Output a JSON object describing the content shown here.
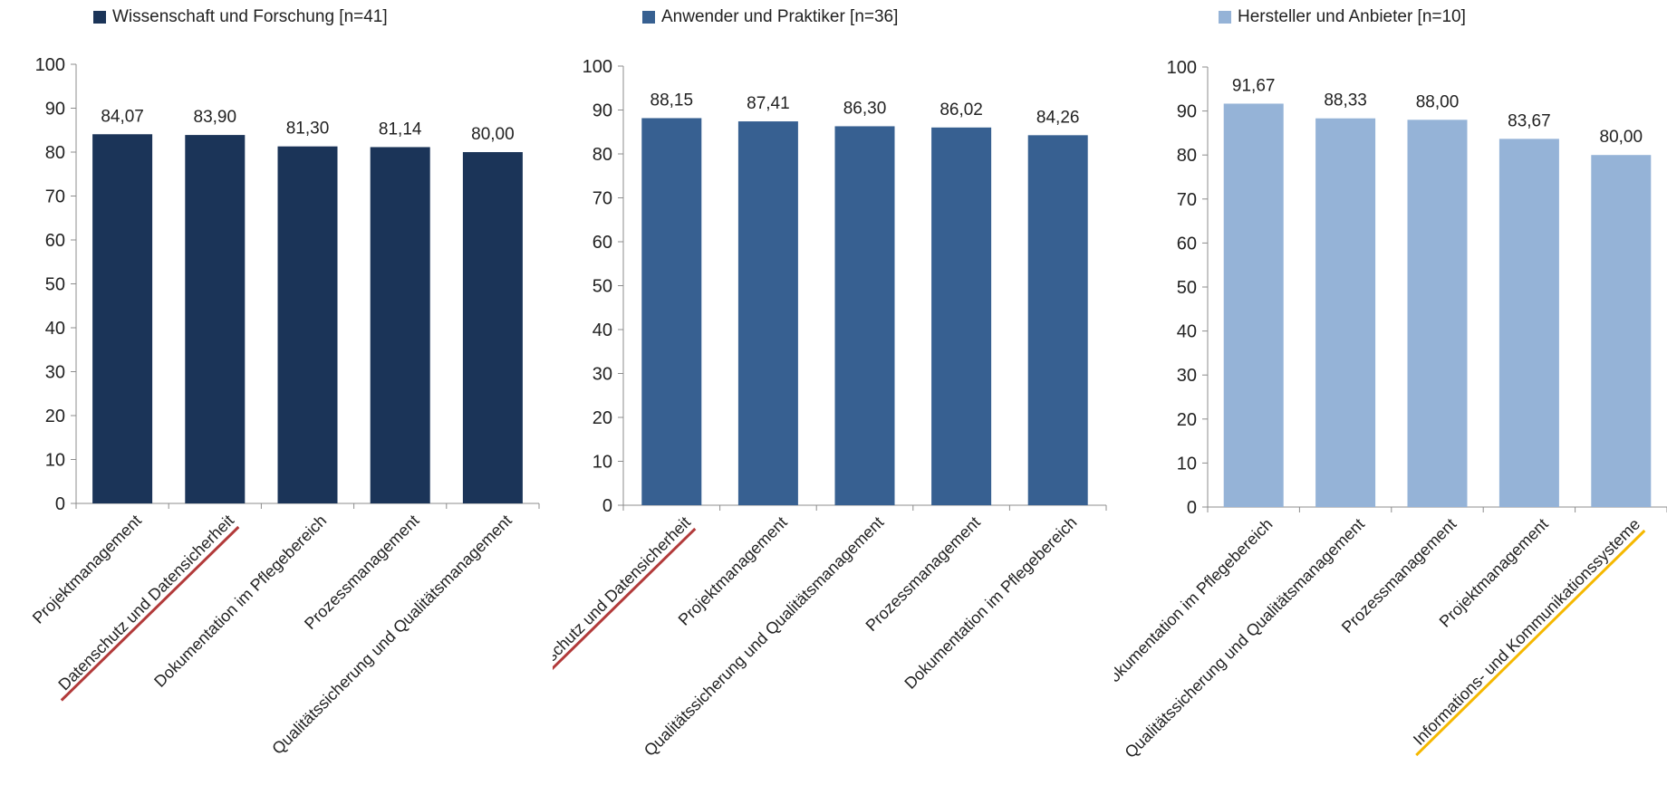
{
  "chart_data": [
    {
      "type": "bar",
      "legend": "Wissenschaft und Forschung [n=41]",
      "color": "#1b3458",
      "categories": [
        "Projektmanagement",
        "Datenschutz und Datensicherheit",
        "Dokumentation im Pflegebereich",
        "Prozessmanagement",
        "Qualitätssicherung und Qualitätsmanagement"
      ],
      "values": [
        84.07,
        83.9,
        81.3,
        81.14,
        80.0
      ],
      "value_labels": [
        "84,07",
        "83,90",
        "81,30",
        "81,14",
        "80,00"
      ],
      "underline": [
        {
          "index": 1,
          "color": "#b23a3a"
        }
      ],
      "ylim": [
        0,
        100
      ],
      "yticks": [
        "0",
        "10",
        "20",
        "30",
        "40",
        "50",
        "60",
        "70",
        "80",
        "90",
        "100"
      ]
    },
    {
      "type": "bar",
      "legend": "Anwender und Praktiker [n=36]",
      "color": "#376091",
      "categories": [
        "Datenschutz und Datensicherheit",
        "Projektmanagement",
        "Qualitätssicherung und Qualitätsmanagement",
        "Prozessmanagement",
        "Dokumentation im Pflegebereich"
      ],
      "values": [
        88.15,
        87.41,
        86.3,
        86.02,
        84.26
      ],
      "value_labels": [
        "88,15",
        "87,41",
        "86,30",
        "86,02",
        "84,26"
      ],
      "underline": [
        {
          "index": 0,
          "color": "#b23a3a"
        }
      ],
      "ylim": [
        0,
        100
      ],
      "yticks": [
        "0",
        "10",
        "20",
        "30",
        "40",
        "50",
        "60",
        "70",
        "80",
        "90",
        "100"
      ]
    },
    {
      "type": "bar",
      "legend": "Hersteller und Anbieter [n=10]",
      "color": "#95b3d7",
      "categories": [
        "Dokumentation im Pflegebereich",
        "Qualitätssicherung und Qualitätsmanagement",
        "Prozessmanagement",
        "Projektmanagement",
        "Informations- und Kommunikationssysteme"
      ],
      "values": [
        91.67,
        88.33,
        88.0,
        83.67,
        80.0
      ],
      "value_labels": [
        "91,67",
        "88,33",
        "88,00",
        "83,67",
        "80,00"
      ],
      "underline": [
        {
          "index": 4,
          "color": "#f5b800"
        }
      ],
      "ylim": [
        0,
        100
      ],
      "yticks": [
        "0",
        "10",
        "20",
        "30",
        "40",
        "50",
        "60",
        "70",
        "80",
        "90",
        "100"
      ]
    }
  ]
}
